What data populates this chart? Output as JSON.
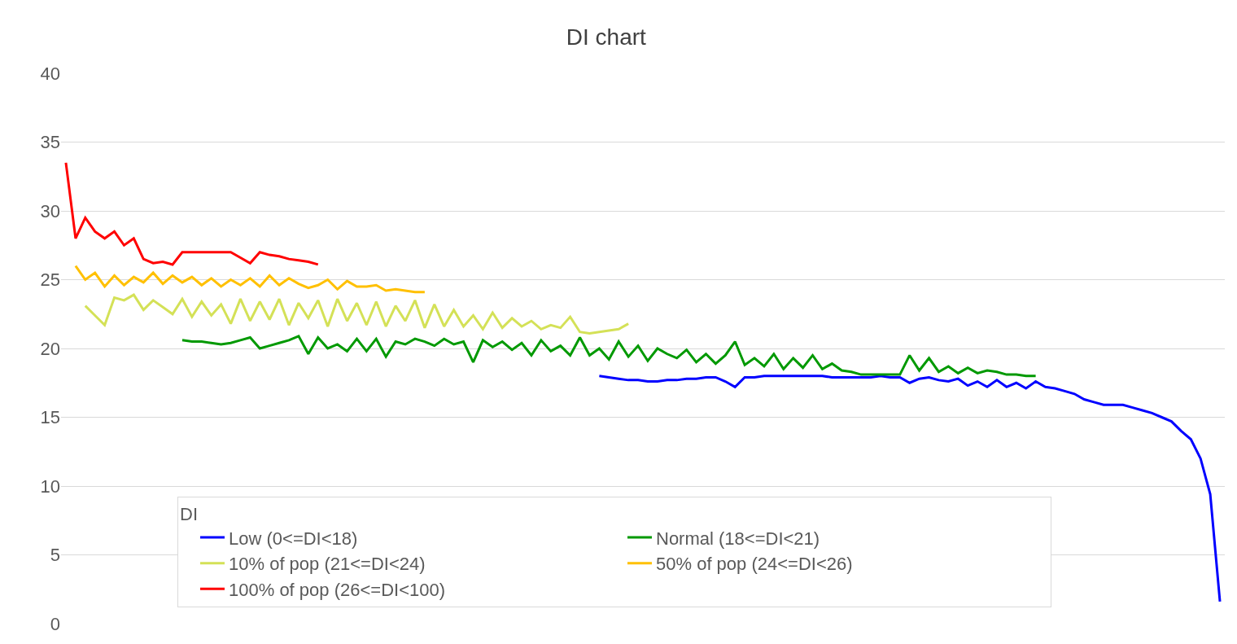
{
  "chart_data": {
    "type": "line",
    "title": "DI chart",
    "legend_title": "DI",
    "legend": "bottom",
    "grid": "y",
    "tick_labels": "y",
    "marker": "none",
    "line_style": "solid",
    "ylim": [
      0,
      40
    ],
    "yticks": [
      0,
      5,
      10,
      15,
      20,
      25,
      30,
      35,
      40
    ],
    "categories": [
      null,
      null,
      null,
      null,
      null,
      null,
      null,
      null,
      null,
      null,
      null,
      null,
      null,
      null,
      null,
      null,
      null,
      null,
      null,
      null,
      null,
      null,
      null,
      null,
      null,
      null,
      null,
      null,
      null,
      null,
      null,
      null,
      null,
      null,
      null,
      null,
      null,
      null,
      null,
      null,
      null,
      null,
      null,
      null,
      null,
      null,
      null,
      null,
      null,
      null,
      null,
      null,
      null,
      null,
      null,
      null,
      null,
      null,
      null,
      null,
      null,
      null,
      null,
      null,
      null,
      null,
      null,
      null,
      null,
      null,
      null,
      null,
      null,
      null,
      null,
      null,
      null,
      null,
      null,
      null,
      null,
      null,
      null,
      null,
      null,
      null,
      null,
      null,
      null,
      null,
      null,
      null,
      null,
      null,
      null,
      null,
      null,
      null,
      null,
      null,
      null,
      null,
      null,
      null,
      null,
      null,
      null,
      null,
      null,
      null,
      null,
      null,
      null,
      null,
      null,
      null,
      null,
      null,
      null,
      null
    ],
    "series": [
      {
        "name": "Low (0<=DI<18)",
        "color": "#0000ff",
        "values": [
          null,
          null,
          null,
          null,
          null,
          null,
          null,
          null,
          null,
          null,
          null,
          null,
          null,
          null,
          null,
          null,
          null,
          null,
          null,
          null,
          null,
          null,
          null,
          null,
          null,
          null,
          null,
          null,
          null,
          null,
          null,
          null,
          null,
          null,
          null,
          null,
          null,
          null,
          null,
          null,
          null,
          null,
          null,
          null,
          null,
          null,
          null,
          null,
          null,
          null,
          null,
          null,
          null,
          null,
          null,
          18,
          17.9,
          17.8,
          17.7,
          17.7,
          17.6,
          17.6,
          17.7,
          17.7,
          17.8,
          17.8,
          17.9,
          17.9,
          17.6,
          17.2,
          17.9,
          17.9,
          18,
          18,
          18,
          18,
          18,
          18,
          18,
          17.9,
          17.9,
          17.9,
          17.9,
          17.9,
          18,
          17.9,
          17.9,
          17.5,
          17.8,
          17.9,
          17.7,
          17.6,
          17.8,
          17.3,
          17.6,
          17.2,
          17.7,
          17.2,
          17.5,
          17.1,
          17.6,
          17.2,
          17.1,
          16.9,
          16.7,
          16.3,
          16.1,
          15.9,
          15.9,
          15.9,
          15.7,
          15.5,
          15.3,
          15,
          14.7,
          14,
          13.4,
          12,
          9.4,
          1.6
        ]
      },
      {
        "name": "Normal (18<=DI<21)",
        "color": "#009900",
        "values": [
          null,
          null,
          null,
          null,
          null,
          null,
          null,
          null,
          null,
          null,
          null,
          null,
          20.6,
          20.5,
          20.5,
          20.4,
          20.3,
          20.4,
          20.6,
          20.8,
          20,
          20.2,
          20.4,
          20.6,
          20.9,
          19.6,
          20.8,
          20,
          20.3,
          19.8,
          20.7,
          19.8,
          20.7,
          19.4,
          20.5,
          20.3,
          20.7,
          20.5,
          20.2,
          20.7,
          20.3,
          20.5,
          19,
          20.6,
          20.1,
          20.5,
          19.9,
          20.4,
          19.5,
          20.6,
          19.8,
          20.2,
          19.5,
          20.8,
          19.5,
          20,
          19.2,
          20.5,
          19.4,
          20.2,
          19.1,
          20,
          19.6,
          19.3,
          19.9,
          19,
          19.6,
          18.9,
          19.5,
          20.5,
          18.8,
          19.3,
          18.7,
          19.6,
          18.5,
          19.3,
          18.6,
          19.5,
          18.5,
          18.9,
          18.4,
          18.3,
          18.1,
          18.1,
          18.1,
          18.1,
          18.1,
          19.5,
          18.4,
          19.3,
          18.3,
          18.7,
          18.2,
          18.6,
          18.2,
          18.4,
          18.3,
          18.1,
          18.1,
          18,
          18,
          null,
          null,
          null,
          null,
          null,
          null,
          null,
          null,
          null,
          null,
          null,
          null,
          null,
          null,
          null,
          null,
          null,
          null,
          null
        ]
      },
      {
        "name": "10% of pop (21<=DI<24)",
        "color": "#d4e157",
        "values": [
          null,
          null,
          23.1,
          22.4,
          21.7,
          23.7,
          23.5,
          23.9,
          22.8,
          23.5,
          23,
          22.5,
          23.6,
          22.3,
          23.4,
          22.4,
          23.2,
          21.8,
          23.6,
          22,
          23.4,
          22.1,
          23.6,
          21.7,
          23.3,
          22.2,
          23.5,
          21.6,
          23.6,
          22,
          23.3,
          21.7,
          23.4,
          21.6,
          23.1,
          22,
          23.5,
          21.5,
          23.2,
          21.6,
          22.8,
          21.6,
          22.4,
          21.4,
          22.6,
          21.5,
          22.2,
          21.6,
          22,
          21.4,
          21.7,
          21.5,
          22.3,
          21.2,
          21.1,
          21.2,
          21.3,
          21.4,
          21.8,
          null,
          null,
          null,
          null,
          null,
          null,
          null,
          null,
          null,
          null,
          null,
          null,
          null,
          null,
          null,
          null,
          null,
          null,
          null,
          null,
          null,
          null,
          null,
          null,
          null,
          null,
          null,
          null,
          null,
          null,
          null,
          null,
          null,
          null,
          null,
          null,
          null,
          null,
          null,
          null,
          null,
          null,
          null,
          null,
          null,
          null,
          null,
          null,
          null,
          null,
          null,
          null,
          null,
          null,
          null,
          null,
          null,
          null,
          null,
          null,
          null
        ]
      },
      {
        "name": "50% of pop (24<=DI<26)",
        "color": "#ffc000",
        "values": [
          null,
          26,
          25,
          25.5,
          24.5,
          25.3,
          24.6,
          25.2,
          24.8,
          25.5,
          24.7,
          25.3,
          24.8,
          25.2,
          24.6,
          25.1,
          24.5,
          25,
          24.6,
          25.1,
          24.5,
          25.3,
          24.6,
          25.1,
          24.7,
          24.4,
          24.6,
          25,
          24.3,
          24.9,
          24.5,
          24.5,
          24.6,
          24.2,
          24.3,
          24.2,
          24.1,
          24.1,
          null,
          null,
          null,
          null,
          null,
          null,
          null,
          null,
          null,
          null,
          null,
          null,
          null,
          null,
          null,
          null,
          null,
          null,
          null,
          null,
          null,
          null,
          null,
          null,
          null,
          null,
          null,
          null,
          null,
          null,
          null,
          null,
          null,
          null,
          null,
          null,
          null,
          null,
          null,
          null,
          null,
          null,
          null,
          null,
          null,
          null,
          null,
          null,
          null,
          null,
          null,
          null,
          null,
          null,
          null,
          null,
          null,
          null,
          null,
          null,
          null,
          null,
          null,
          null,
          null,
          null,
          null,
          null,
          null,
          null,
          null,
          null,
          null,
          null,
          null,
          null,
          null,
          null,
          null,
          null,
          null,
          null
        ]
      },
      {
        "name": "100% of pop (26<=DI<100)",
        "color": "#ff0000",
        "values": [
          33.5,
          28,
          29.5,
          28.5,
          28,
          28.5,
          27.5,
          28,
          26.5,
          26.2,
          26.3,
          26.1,
          27,
          27,
          27,
          27,
          27,
          27,
          26.6,
          26.2,
          27,
          26.8,
          26.7,
          26.5,
          26.4,
          26.3,
          26.1,
          null,
          null,
          null,
          null,
          null,
          null,
          null,
          null,
          null,
          null,
          null,
          null,
          null,
          null,
          null,
          null,
          null,
          null,
          null,
          null,
          null,
          null,
          null,
          null,
          null,
          null,
          null,
          null,
          null,
          null,
          null,
          null,
          null,
          null,
          null,
          null,
          null,
          null,
          null,
          null,
          null,
          null,
          null,
          null,
          null,
          null,
          null,
          null,
          null,
          null,
          null,
          null,
          null,
          null,
          null,
          null,
          null,
          null,
          null,
          null,
          null,
          null,
          null,
          null,
          null,
          null,
          null,
          null,
          null,
          null,
          null,
          null,
          null,
          null,
          null,
          null,
          null,
          null,
          null,
          null,
          null,
          null,
          null,
          null,
          null,
          null,
          null,
          null,
          null,
          null,
          null,
          null,
          null
        ]
      }
    ]
  }
}
